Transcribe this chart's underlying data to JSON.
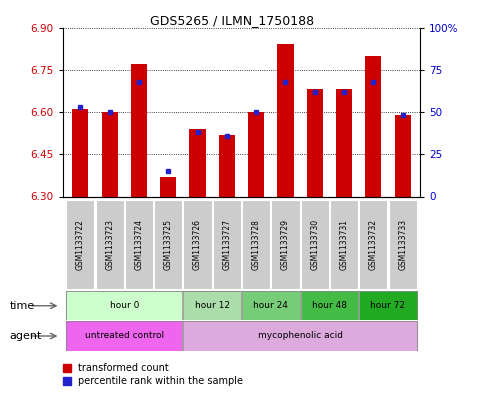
{
  "title": "GDS5265 / ILMN_1750188",
  "samples": [
    "GSM1133722",
    "GSM1133723",
    "GSM1133724",
    "GSM1133725",
    "GSM1133726",
    "GSM1133727",
    "GSM1133728",
    "GSM1133729",
    "GSM1133730",
    "GSM1133731",
    "GSM1133732",
    "GSM1133733"
  ],
  "transformed_count": [
    6.61,
    6.6,
    6.77,
    6.37,
    6.54,
    6.52,
    6.6,
    6.84,
    6.68,
    6.68,
    6.8,
    6.59
  ],
  "percentile_rank": [
    53,
    50,
    68,
    15,
    38,
    36,
    50,
    68,
    62,
    62,
    68,
    48
  ],
  "ylim": [
    6.3,
    6.9
  ],
  "yticks": [
    6.3,
    6.45,
    6.6,
    6.75,
    6.9
  ],
  "y2lim": [
    0,
    100
  ],
  "y2ticks": [
    0,
    25,
    50,
    75,
    100
  ],
  "y2labels": [
    "0",
    "25",
    "50",
    "75",
    "100%"
  ],
  "bar_color_red": "#cc0000",
  "bar_color_blue": "#2222cc",
  "bar_width": 0.55,
  "time_groups": [
    {
      "label": "hour 0",
      "start": 0,
      "end": 3,
      "color": "#ccffcc"
    },
    {
      "label": "hour 12",
      "start": 4,
      "end": 5,
      "color": "#aaddaa"
    },
    {
      "label": "hour 24",
      "start": 6,
      "end": 7,
      "color": "#77cc77"
    },
    {
      "label": "hour 48",
      "start": 8,
      "end": 9,
      "color": "#44bb44"
    },
    {
      "label": "hour 72",
      "start": 10,
      "end": 11,
      "color": "#22aa22"
    }
  ],
  "agent_groups": [
    {
      "label": "untreated control",
      "start": 0,
      "end": 3,
      "color": "#ee66ee"
    },
    {
      "label": "mycophenolic acid",
      "start": 4,
      "end": 11,
      "color": "#ddaadd"
    }
  ],
  "legend_red_label": "transformed count",
  "legend_blue_label": "percentile rank within the sample",
  "plot_bg": "#ffffff",
  "axis_label_color_left": "#cc0000",
  "axis_label_color_right": "#0000cc",
  "sample_bg": "#cccccc",
  "outer_border": "#888888"
}
